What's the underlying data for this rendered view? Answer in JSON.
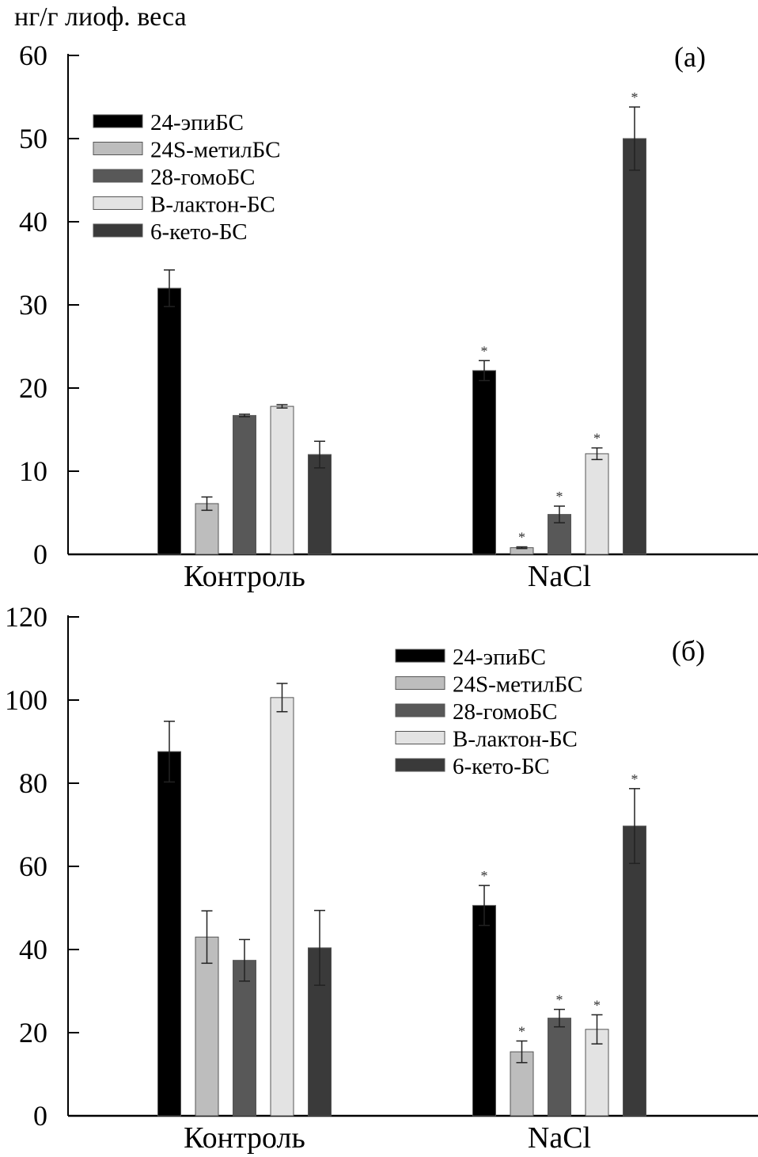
{
  "y_unit_label": "нг/г лиоф. веса",
  "colors": {
    "24-эпиБС": "#000000",
    "24S-метилБС": "#bdbdbd",
    "28-гомоБС": "#585858",
    "B-лактон-БС": "#e3e3e3",
    "6-кето-БС": "#3a3a3a"
  },
  "chart_data": [
    {
      "type": "bar",
      "panel_label": "(а)",
      "ylabel": "нг/г лиоф. веса",
      "ylim": [
        0,
        60
      ],
      "yticks": [
        0,
        10,
        20,
        30,
        40,
        50,
        60
      ],
      "categories": [
        "Контроль",
        "NaCl"
      ],
      "legend_position": "top-left",
      "significance_marker": "*",
      "series": [
        {
          "name": "24-эпиБС",
          "values": [
            32.0,
            22.1
          ],
          "errors": [
            2.2,
            1.2
          ],
          "significant": [
            false,
            true
          ]
        },
        {
          "name": "24S-метилБС",
          "values": [
            6.1,
            0.8
          ],
          "errors": [
            0.8,
            0.1
          ],
          "significant": [
            false,
            true
          ]
        },
        {
          "name": "28-гомоБС",
          "values": [
            16.7,
            4.8
          ],
          "errors": [
            0.15,
            1.0
          ],
          "significant": [
            false,
            true
          ]
        },
        {
          "name": "B-лактон-БС",
          "values": [
            17.8,
            12.1
          ],
          "errors": [
            0.2,
            0.7
          ],
          "significant": [
            false,
            true
          ]
        },
        {
          "name": "6-кето-БС",
          "values": [
            12.0,
            50.0
          ],
          "errors": [
            1.6,
            3.8
          ],
          "significant": [
            false,
            true
          ]
        }
      ]
    },
    {
      "type": "bar",
      "panel_label": "(б)",
      "ylim": [
        0,
        120
      ],
      "yticks": [
        0,
        20,
        40,
        60,
        80,
        100,
        120
      ],
      "categories": [
        "Контроль",
        "NaCl"
      ],
      "legend_position": "top-right",
      "significance_marker": "*",
      "series": [
        {
          "name": "24-эпиБС",
          "values": [
            87.6,
            50.6
          ],
          "errors": [
            7.3,
            4.8
          ],
          "significant": [
            false,
            true
          ]
        },
        {
          "name": "24S-метилБС",
          "values": [
            43.0,
            15.4
          ],
          "errors": [
            6.3,
            2.6
          ],
          "significant": [
            false,
            true
          ]
        },
        {
          "name": "28-гомоБС",
          "values": [
            37.4,
            23.5
          ],
          "errors": [
            5.0,
            2.1
          ],
          "significant": [
            false,
            true
          ]
        },
        {
          "name": "B-лактон-БС",
          "values": [
            100.6,
            20.8
          ],
          "errors": [
            3.4,
            3.5
          ],
          "significant": [
            false,
            true
          ]
        },
        {
          "name": "6-кето-БС",
          "values": [
            40.4,
            69.7
          ],
          "errors": [
            9.0,
            9.0
          ],
          "significant": [
            false,
            true
          ]
        }
      ]
    }
  ]
}
